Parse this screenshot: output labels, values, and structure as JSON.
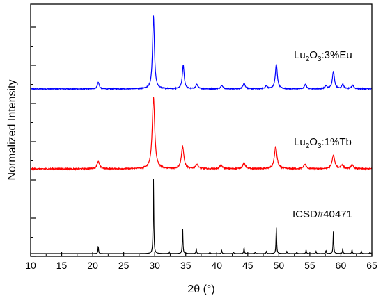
{
  "chart_data": {
    "type": "line",
    "xlabel": "2θ (°)",
    "ylabel": "Normalized Intensity",
    "xlim": [
      10,
      65
    ],
    "x_ticks": [
      10,
      15,
      20,
      25,
      30,
      35,
      40,
      45,
      50,
      55,
      60,
      65
    ],
    "y_ticks_labeled": false,
    "grid": false,
    "legend": "none",
    "series": [
      {
        "name": "Lu2O3:3%Eu",
        "label_parts": {
          "base": "Lu",
          "sub1": "2",
          "mid": "O",
          "sub2": "3",
          "tail": ":3%Eu"
        },
        "color": "#0000ff",
        "baseline": 0.03,
        "noise": 0.006,
        "peaks": [
          {
            "x": 20.9,
            "h": 0.09,
            "w": 0.18
          },
          {
            "x": 29.8,
            "h": 1.0,
            "w": 0.18
          },
          {
            "x": 34.6,
            "h": 0.32,
            "w": 0.18
          },
          {
            "x": 36.8,
            "h": 0.06,
            "w": 0.2
          },
          {
            "x": 40.8,
            "h": 0.05,
            "w": 0.2
          },
          {
            "x": 44.4,
            "h": 0.08,
            "w": 0.2
          },
          {
            "x": 48.0,
            "h": 0.04,
            "w": 0.2
          },
          {
            "x": 49.6,
            "h": 0.33,
            "w": 0.2
          },
          {
            "x": 54.3,
            "h": 0.06,
            "w": 0.2
          },
          {
            "x": 57.6,
            "h": 0.04,
            "w": 0.2
          },
          {
            "x": 58.8,
            "h": 0.24,
            "w": 0.2
          },
          {
            "x": 60.3,
            "h": 0.06,
            "w": 0.2
          },
          {
            "x": 61.9,
            "h": 0.05,
            "w": 0.2
          }
        ]
      },
      {
        "name": "Lu2O3:1%Tb",
        "label_parts": {
          "base": "Lu",
          "sub1": "2",
          "mid": "O",
          "sub2": "3",
          "tail": ":1%Tb"
        },
        "color": "#ff0000",
        "baseline": 0.03,
        "noise": 0.008,
        "peaks": [
          {
            "x": 20.9,
            "h": 0.1,
            "w": 0.25
          },
          {
            "x": 29.8,
            "h": 1.0,
            "w": 0.24
          },
          {
            "x": 34.5,
            "h": 0.31,
            "w": 0.24
          },
          {
            "x": 36.8,
            "h": 0.06,
            "w": 0.25
          },
          {
            "x": 40.7,
            "h": 0.05,
            "w": 0.25
          },
          {
            "x": 44.4,
            "h": 0.08,
            "w": 0.25
          },
          {
            "x": 49.5,
            "h": 0.31,
            "w": 0.25
          },
          {
            "x": 54.2,
            "h": 0.06,
            "w": 0.25
          },
          {
            "x": 58.8,
            "h": 0.19,
            "w": 0.25
          },
          {
            "x": 60.2,
            "h": 0.05,
            "w": 0.25
          },
          {
            "x": 61.8,
            "h": 0.05,
            "w": 0.25
          }
        ]
      },
      {
        "name": "ICSD#40471",
        "label_parts": {
          "base": "ICSD#40471",
          "sub1": "",
          "mid": "",
          "sub2": "",
          "tail": ""
        },
        "color": "#000000",
        "baseline": 0.0,
        "noise": 0.0,
        "peaks": [
          {
            "x": 20.9,
            "h": 0.1,
            "w": 0.06
          },
          {
            "x": 29.8,
            "h": 1.0,
            "w": 0.06
          },
          {
            "x": 32.3,
            "h": 0.03,
            "w": 0.06
          },
          {
            "x": 34.5,
            "h": 0.35,
            "w": 0.06
          },
          {
            "x": 36.7,
            "h": 0.06,
            "w": 0.06
          },
          {
            "x": 38.9,
            "h": 0.02,
            "w": 0.06
          },
          {
            "x": 40.8,
            "h": 0.04,
            "w": 0.06
          },
          {
            "x": 42.7,
            "h": 0.02,
            "w": 0.06
          },
          {
            "x": 44.4,
            "h": 0.08,
            "w": 0.06
          },
          {
            "x": 46.2,
            "h": 0.02,
            "w": 0.06
          },
          {
            "x": 48.0,
            "h": 0.03,
            "w": 0.06
          },
          {
            "x": 49.6,
            "h": 0.35,
            "w": 0.06
          },
          {
            "x": 51.3,
            "h": 0.03,
            "w": 0.06
          },
          {
            "x": 52.9,
            "h": 0.02,
            "w": 0.06
          },
          {
            "x": 54.4,
            "h": 0.05,
            "w": 0.06
          },
          {
            "x": 56.0,
            "h": 0.03,
            "w": 0.06
          },
          {
            "x": 57.6,
            "h": 0.04,
            "w": 0.06
          },
          {
            "x": 58.8,
            "h": 0.3,
            "w": 0.06
          },
          {
            "x": 60.3,
            "h": 0.06,
            "w": 0.06
          },
          {
            "x": 61.8,
            "h": 0.05,
            "w": 0.06
          },
          {
            "x": 63.3,
            "h": 0.03,
            "w": 0.06
          },
          {
            "x": 64.7,
            "h": 0.02,
            "w": 0.06
          }
        ]
      }
    ]
  }
}
